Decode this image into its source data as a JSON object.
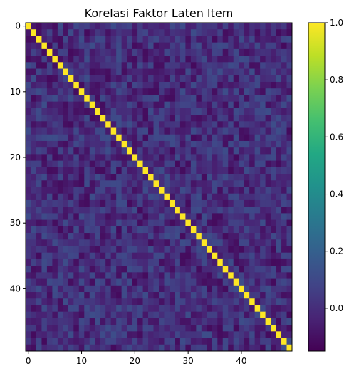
{
  "chart_data": {
    "type": "heatmap",
    "title": "Korelasi Faktor Laten Item",
    "xlabel": "",
    "ylabel": "",
    "n": 50,
    "x_ticks": [
      0,
      10,
      20,
      30,
      40
    ],
    "y_ticks": [
      0,
      10,
      20,
      30,
      40
    ],
    "colormap": "viridis",
    "colorbar": {
      "min": -0.15,
      "max": 1.0,
      "ticks": [
        0.0,
        0.2,
        0.4,
        0.6,
        0.8,
        1.0
      ],
      "tick_labels": [
        "0.0",
        "0.2",
        "0.4",
        "0.6",
        "0.8",
        "1.0"
      ]
    },
    "diagonal_value": 1.0,
    "off_diagonal_range": [
      -0.12,
      0.12
    ],
    "grid": false
  }
}
